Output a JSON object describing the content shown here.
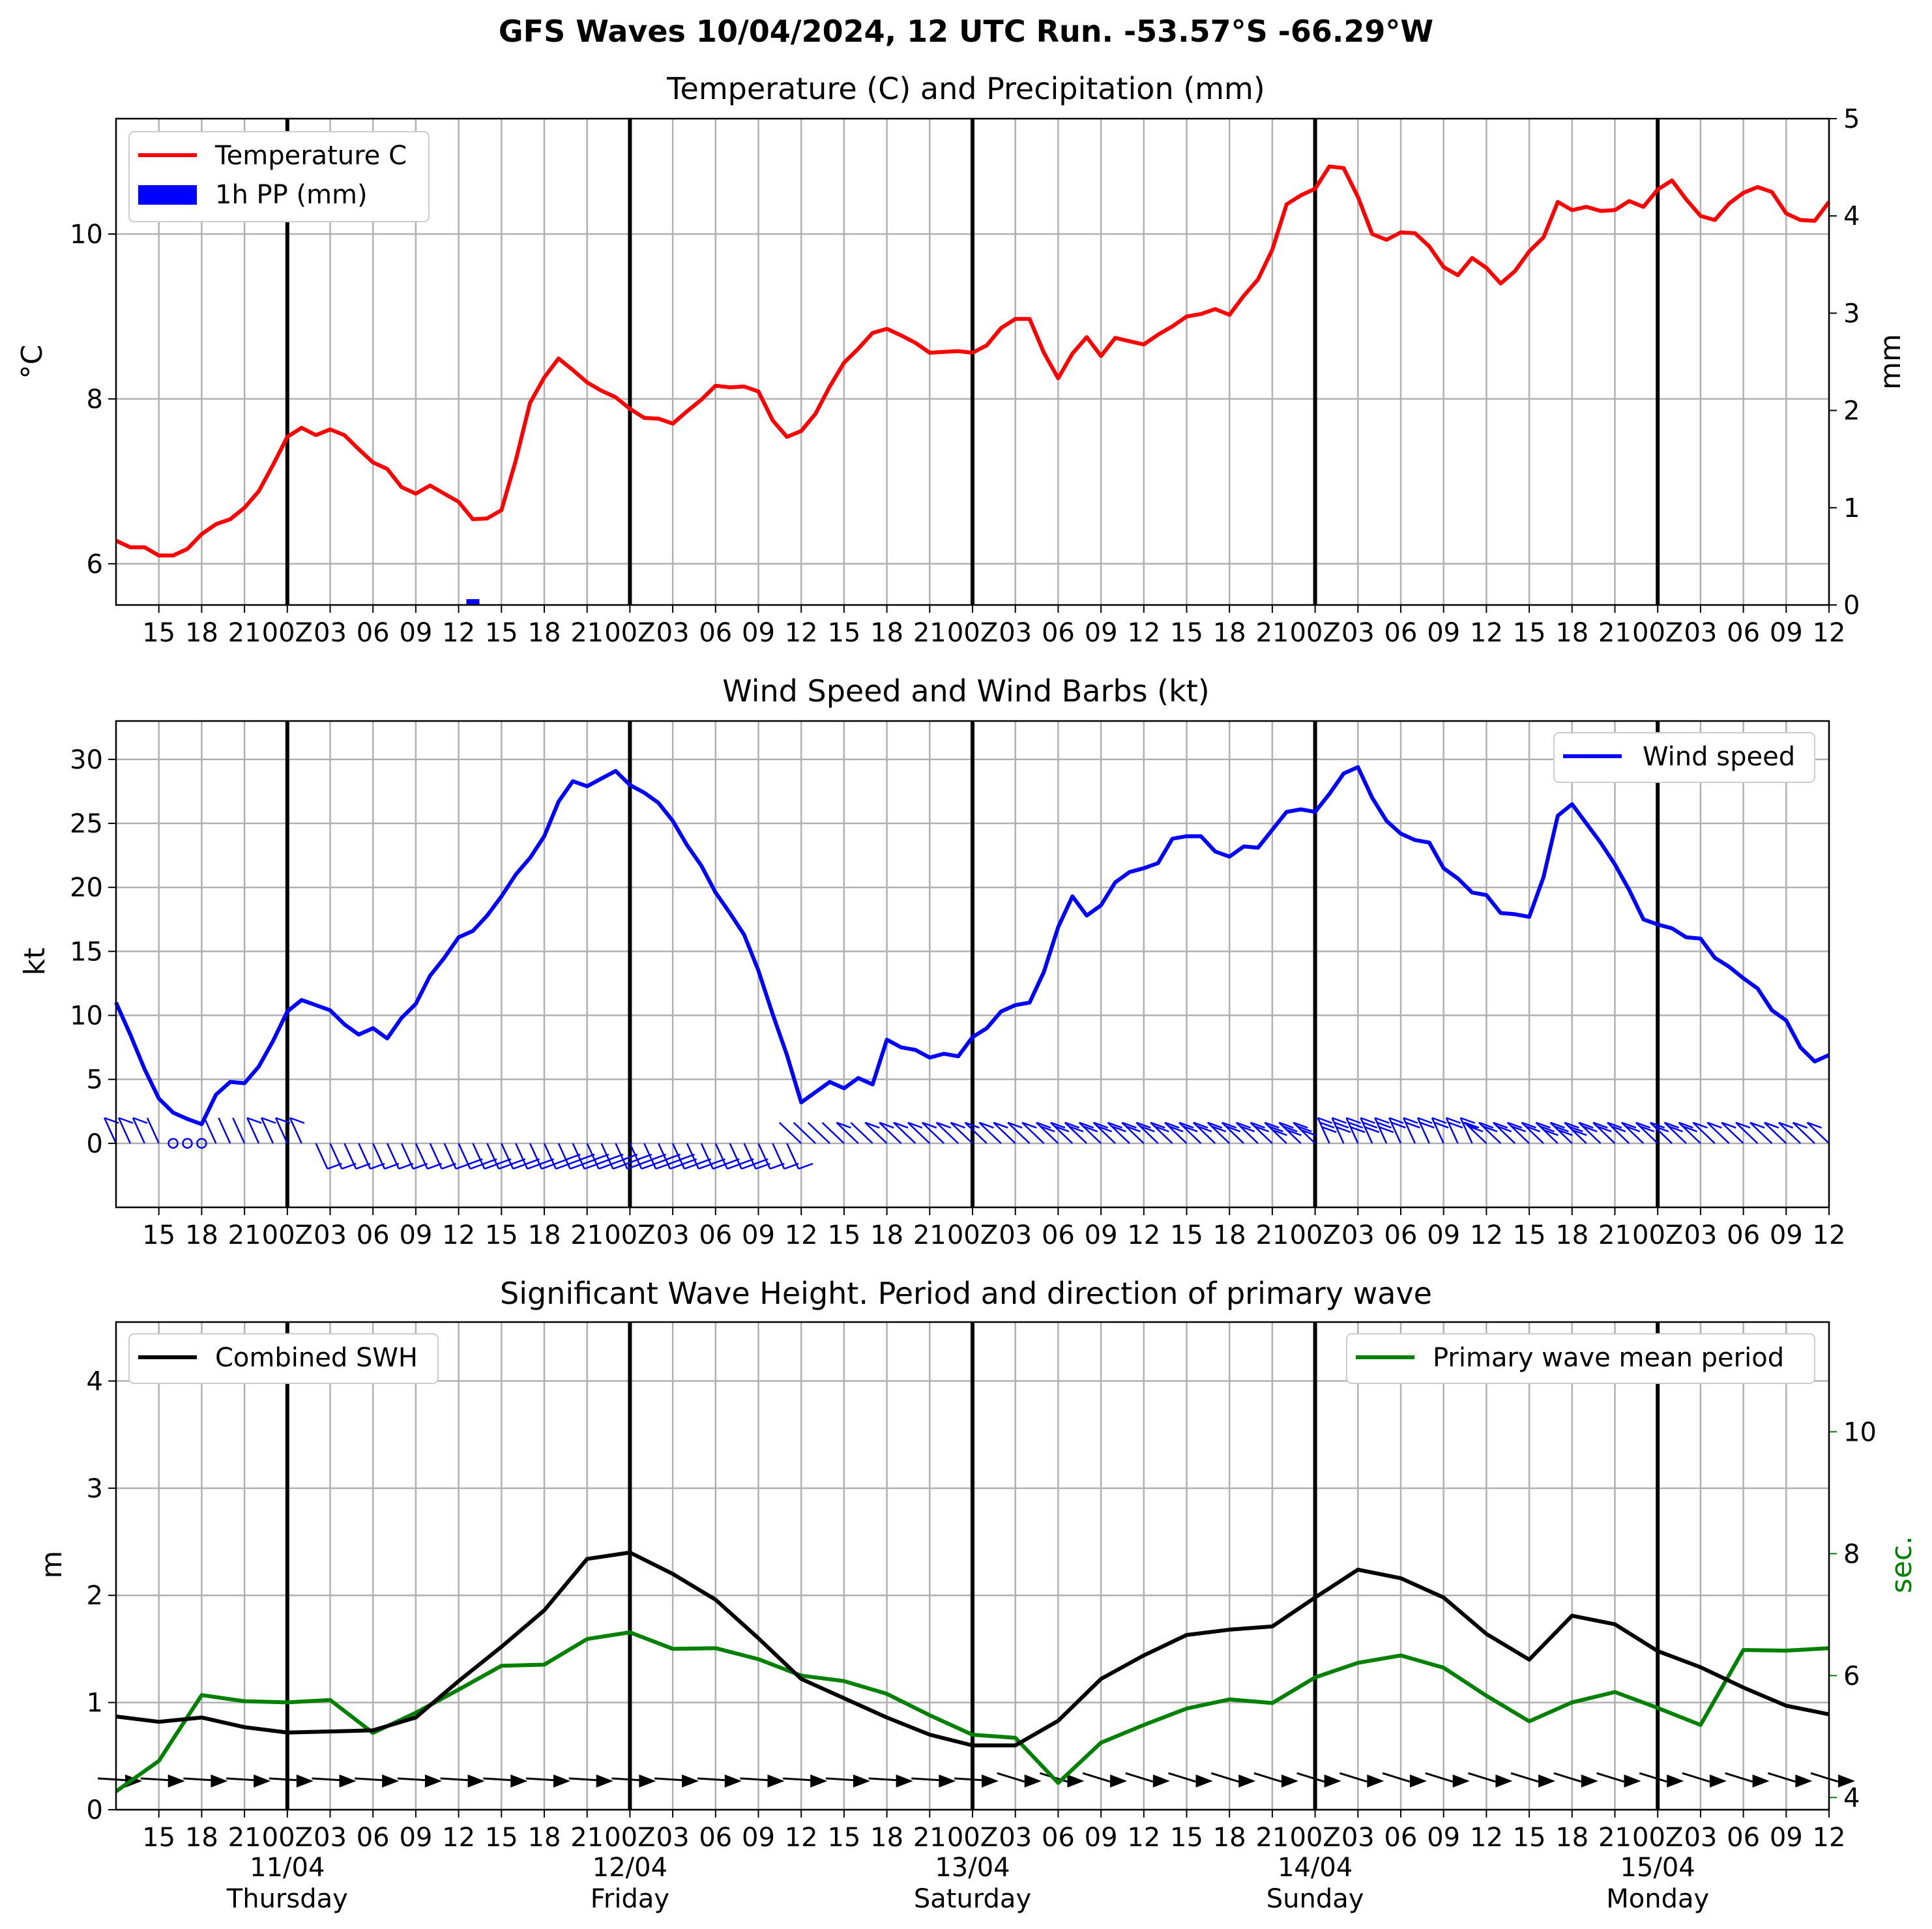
{
  "suptitle": "GFS Waves 10/04/2024, 12 UTC Run. -53.57°S -66.29°W",
  "colors": {
    "temperature": "#ff0000",
    "precip": "#0000ff",
    "wind": "#0000ff",
    "swh": "#000000",
    "period": "#008000",
    "grid": "#b0b0b0",
    "day_line": "#000000"
  },
  "x_axis": {
    "unit": "hours since run start (10/04 12 UTC)",
    "range": [
      0,
      120
    ],
    "tick_hours": [
      3,
      6,
      9,
      12,
      15,
      18,
      21,
      24,
      27,
      30,
      33,
      36,
      39,
      42,
      45,
      48,
      51,
      54,
      57,
      60,
      63,
      66,
      69,
      72,
      75,
      78,
      81,
      84,
      87,
      90,
      93,
      96,
      99,
      102,
      105,
      108,
      111,
      114,
      117,
      120
    ],
    "tick_labels_top": [
      "15",
      "18",
      "21",
      "00Z",
      "03",
      "06",
      "09",
      "12",
      "15",
      "18",
      "21",
      "00Z",
      "03",
      "06",
      "09",
      "12",
      "15",
      "18",
      "21",
      "00Z",
      "03",
      "06",
      "09",
      "12",
      "15",
      "18",
      "21",
      "00Z",
      "03",
      "06",
      "09",
      "12",
      "15",
      "18",
      "21",
      "00Z",
      "03",
      "06",
      "09",
      "12"
    ],
    "tick_labels_bottom": [
      "15",
      "18",
      "21",
      "00Z",
      "03",
      "06",
      "09",
      "12",
      "15",
      "18",
      "21",
      "00Z",
      "03",
      "06",
      "09",
      "12",
      "15",
      "18",
      "21",
      "00Z",
      "03",
      "06",
      "09",
      "12",
      "15",
      "18",
      "21",
      "00Z",
      "03",
      "06",
      "09",
      "12",
      "15",
      "18",
      "21",
      "00Z",
      "03",
      "06",
      "09",
      "12"
    ],
    "day_lines_hours": [
      12,
      36,
      60,
      84,
      108
    ],
    "day_labels": [
      {
        "hour": 12,
        "date": "11/04",
        "weekday": "Thursday"
      },
      {
        "hour": 36,
        "date": "12/04",
        "weekday": "Friday"
      },
      {
        "hour": 60,
        "date": "13/04",
        "weekday": "Saturday"
      },
      {
        "hour": 84,
        "date": "14/04",
        "weekday": "Sunday"
      },
      {
        "hour": 108,
        "date": "15/04",
        "weekday": "Monday"
      }
    ]
  },
  "chart_data": [
    {
      "type": "line",
      "title": "Temperature (C) and Precipitation (mm)",
      "ylabel": "°C",
      "ylim": [
        5.5,
        11.4
      ],
      "yticks": [
        6,
        8,
        10
      ],
      "y2label": "mm",
      "y2lim": [
        0,
        5
      ],
      "y2ticks": [
        0,
        1,
        2,
        3,
        4,
        5
      ],
      "grid": true,
      "legend": {
        "position": "top-left"
      },
      "series": [
        {
          "name": "Temperature C",
          "kind": "line",
          "x": [
            0,
            1,
            2,
            3,
            4,
            5,
            6,
            7,
            8,
            9,
            10,
            11,
            12,
            13,
            14,
            15,
            16,
            17,
            18,
            19,
            20,
            21,
            22,
            23,
            24,
            25,
            26,
            27,
            28,
            29,
            30,
            31,
            32,
            33,
            34,
            35,
            36,
            37,
            38,
            39,
            40,
            41,
            42,
            43,
            44,
            45,
            46,
            47,
            48,
            49,
            50,
            51,
            52,
            53,
            54,
            55,
            56,
            57,
            58,
            59,
            60,
            61,
            62,
            63,
            64,
            65,
            66,
            67,
            68,
            69,
            70,
            71,
            72,
            73,
            74,
            75,
            76,
            77,
            78,
            79,
            80,
            81,
            82,
            83,
            84,
            85,
            86,
            87,
            88,
            89,
            90,
            91,
            92,
            93,
            94,
            95,
            96,
            97,
            98,
            99,
            100,
            101,
            102,
            103,
            104,
            105,
            106,
            107,
            108,
            109,
            110,
            111,
            112,
            113,
            114,
            115,
            116,
            117,
            118,
            119,
            120
          ],
          "y": [
            6.28,
            6.2,
            6.2,
            6.1,
            6.1,
            6.18,
            6.36,
            6.48,
            6.54,
            6.68,
            6.88,
            7.2,
            7.54,
            7.65,
            7.56,
            7.63,
            7.56,
            7.39,
            7.23,
            7.15,
            6.93,
            6.85,
            6.95,
            6.85,
            6.75,
            6.54,
            6.55,
            6.65,
            7.25,
            7.95,
            8.26,
            8.49,
            8.35,
            8.2,
            8.1,
            8.02,
            7.88,
            7.77,
            7.76,
            7.7,
            7.85,
            7.99,
            8.16,
            8.14,
            8.15,
            8.09,
            7.74,
            7.54,
            7.61,
            7.82,
            8.15,
            8.44,
            8.61,
            8.8,
            8.85,
            8.77,
            8.68,
            8.56,
            8.57,
            8.58,
            8.56,
            8.65,
            8.86,
            8.97,
            8.97,
            8.56,
            8.25,
            8.55,
            8.75,
            8.52,
            8.74,
            8.7,
            8.66,
            8.78,
            8.88,
            9.0,
            9.03,
            9.09,
            9.02,
            9.25,
            9.45,
            9.81,
            10.36,
            10.47,
            10.55,
            10.82,
            10.8,
            10.45,
            10.0,
            9.93,
            10.02,
            10.01,
            9.85,
            9.6,
            9.5,
            9.71,
            9.59,
            9.4,
            9.55,
            9.79,
            9.96,
            10.39,
            10.29,
            10.33,
            10.28,
            10.29,
            10.4,
            10.33,
            10.54,
            10.65,
            10.42,
            10.22,
            10.17,
            10.37,
            10.5,
            10.57,
            10.51,
            10.25,
            10.17,
            10.16,
            10.39
          ]
        },
        {
          "name": "1h PP (mm)",
          "kind": "bar",
          "axis": "y2",
          "x": [
            25
          ],
          "y": [
            0.06
          ]
        }
      ]
    },
    {
      "type": "line",
      "title": "Wind Speed and Wind Barbs (kt)",
      "ylabel": "kt",
      "ylim": [
        -5,
        33
      ],
      "yticks": [
        0,
        5,
        10,
        15,
        20,
        25,
        30
      ],
      "grid": true,
      "legend": {
        "position": "top-right"
      },
      "series": [
        {
          "name": "Wind speed",
          "x": [
            0,
            1,
            2,
            3,
            4,
            5,
            6,
            7,
            8,
            9,
            10,
            11,
            12,
            13,
            14,
            15,
            16,
            17,
            18,
            19,
            20,
            21,
            22,
            23,
            24,
            25,
            26,
            27,
            28,
            29,
            30,
            31,
            32,
            33,
            34,
            35,
            36,
            37,
            38,
            39,
            40,
            41,
            42,
            43,
            44,
            45,
            46,
            47,
            48,
            49,
            50,
            51,
            52,
            53,
            54,
            55,
            56,
            57,
            58,
            59,
            60,
            61,
            62,
            63,
            64,
            65,
            66,
            67,
            68,
            69,
            70,
            71,
            72,
            73,
            74,
            75,
            76,
            77,
            78,
            79,
            80,
            81,
            82,
            83,
            84,
            85,
            86,
            87,
            88,
            89,
            90,
            91,
            92,
            93,
            94,
            95,
            96,
            97,
            98,
            99,
            100,
            101,
            102,
            103,
            104,
            105,
            106,
            107,
            108,
            109,
            110,
            111,
            112,
            113,
            114,
            115,
            116,
            117,
            118,
            119,
            120
          ],
          "y": [
            11.0,
            8.5,
            5.8,
            3.5,
            2.4,
            1.9,
            1.5,
            3.8,
            4.8,
            4.7,
            6.0,
            8.0,
            10.3,
            11.2,
            10.8,
            10.4,
            9.3,
            8.5,
            9.0,
            8.2,
            9.8,
            10.9,
            13.1,
            14.5,
            16.1,
            16.6,
            17.8,
            19.3,
            21.0,
            22.3,
            24.0,
            26.7,
            28.3,
            27.9,
            28.5,
            29.1,
            28.0,
            27.4,
            26.6,
            25.2,
            23.3,
            21.7,
            19.6,
            18.0,
            16.3,
            13.5,
            10.1,
            6.9,
            3.2,
            4.0,
            4.8,
            4.3,
            5.1,
            4.6,
            8.1,
            7.5,
            7.3,
            6.7,
            7.0,
            6.8,
            8.3,
            9.0,
            10.3,
            10.8,
            11.0,
            13.4,
            16.9,
            19.3,
            17.8,
            18.6,
            20.4,
            21.2,
            21.5,
            21.9,
            23.8,
            24.0,
            24.0,
            22.8,
            22.4,
            23.2,
            23.1,
            24.5,
            25.9,
            26.1,
            25.9,
            27.3,
            28.9,
            29.4,
            27.0,
            25.2,
            24.2,
            23.7,
            23.5,
            21.5,
            20.7,
            19.6,
            19.4,
            18.0,
            17.9,
            17.7,
            20.8,
            25.6,
            26.5,
            25.0,
            23.5,
            21.8,
            19.8,
            17.5,
            17.1,
            16.8,
            16.1,
            16.0,
            14.5,
            13.8,
            12.9,
            12.1,
            10.4,
            9.6,
            7.5,
            6.4,
            6.9
          ]
        }
      ]
    },
    {
      "type": "line",
      "title": "Significant Wave Height. Period and direction of primary wave",
      "ylabel": "m",
      "ylim": [
        0,
        4.55
      ],
      "yticks": [
        0,
        1,
        2,
        3,
        4
      ],
      "y2label": "sec.",
      "y2lim": [
        3.8,
        11.8
      ],
      "y2ticks": [
        4,
        6,
        8,
        10
      ],
      "grid": true,
      "legends": [
        {
          "position": "top-left",
          "entries": [
            "Combined SWH"
          ]
        },
        {
          "position": "top-right",
          "entries": [
            "Primary wave mean period"
          ]
        }
      ],
      "series": [
        {
          "name": "Combined SWH",
          "x": [
            0,
            3,
            6,
            9,
            12,
            15,
            18,
            21,
            24,
            27,
            30,
            33,
            36,
            39,
            42,
            45,
            48,
            51,
            54,
            57,
            60,
            63,
            66,
            69,
            72,
            75,
            78,
            81,
            84,
            87,
            90,
            93,
            96,
            99,
            102,
            105,
            108,
            111,
            114,
            117,
            120
          ],
          "y": [
            0.87,
            0.82,
            0.86,
            0.77,
            0.72,
            0.73,
            0.74,
            0.86,
            1.2,
            1.52,
            1.86,
            2.34,
            2.4,
            2.2,
            1.96,
            1.6,
            1.22,
            1.04,
            0.86,
            0.7,
            0.6,
            0.6,
            0.83,
            1.22,
            1.44,
            1.63,
            1.68,
            1.71,
            1.98,
            2.24,
            2.16,
            1.98,
            1.64,
            1.4,
            1.81,
            1.73,
            1.48,
            1.33,
            1.14,
            0.97,
            0.89
          ]
        },
        {
          "name": "Primary wave mean period",
          "axis": "y2",
          "x": [
            0,
            3,
            6,
            9,
            12,
            15,
            18,
            21,
            24,
            27,
            30,
            33,
            36,
            39,
            42,
            45,
            48,
            51,
            54,
            57,
            60,
            63,
            66,
            69,
            72,
            75,
            78,
            81,
            84,
            87,
            90,
            93,
            96,
            99,
            102,
            105,
            108,
            111,
            114,
            117,
            120
          ],
          "y": [
            4.1,
            4.6,
            5.68,
            5.58,
            5.56,
            5.6,
            5.06,
            5.39,
            5.77,
            6.16,
            6.18,
            6.6,
            6.71,
            6.44,
            6.45,
            6.27,
            6.0,
            5.91,
            5.7,
            5.35,
            5.03,
            4.98,
            4.24,
            4.9,
            5.19,
            5.46,
            5.61,
            5.55,
            5.97,
            6.21,
            6.33,
            6.13,
            5.67,
            5.25,
            5.56,
            5.73,
            5.47,
            5.19,
            6.42,
            6.41,
            6.45
          ]
        }
      ]
    }
  ]
}
